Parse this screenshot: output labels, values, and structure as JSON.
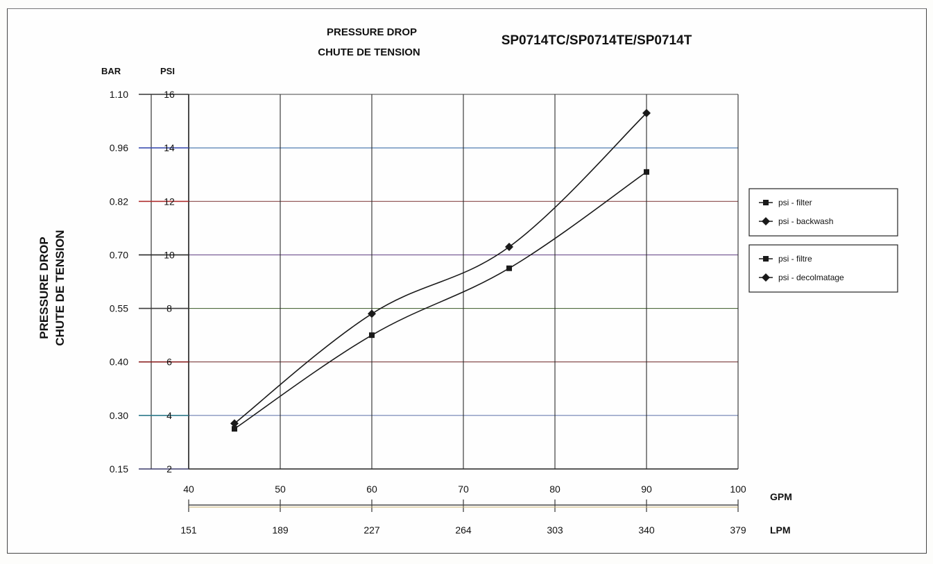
{
  "chart_data": {
    "type": "line",
    "title_lines": [
      "PRESSURE DROP",
      "CHUTE DE TENSION"
    ],
    "model": "SP0714TC/SP0714TE/SP0714T",
    "ylabel_lines": [
      "PRESSURE DROP",
      "CHUTE DE TENSION"
    ],
    "psi_axis_label": "PSI",
    "bar_axis_label": "BAR",
    "gpm_axis_label": "GPM",
    "lpm_axis_label": "LPM",
    "xlim": [
      40,
      100
    ],
    "ylim_psi": [
      2,
      16
    ],
    "x_ticks": [
      "40",
      "50",
      "60",
      "70",
      "80",
      "90",
      "100"
    ],
    "lpm_ticks": [
      "151",
      "189",
      "227",
      "264",
      "303",
      "340",
      "379"
    ],
    "psi_ticks": [
      "2",
      "4",
      "6",
      "8",
      "10",
      "12",
      "14",
      "16"
    ],
    "bar_ticks": [
      "0.15",
      "0.30",
      "0.40",
      "0.55",
      "0.70",
      "0.82",
      "0.96",
      "1.10"
    ],
    "grid": true,
    "series": [
      {
        "marker": "square",
        "x": [
          45,
          60,
          75,
          90
        ],
        "values": [
          3.5,
          7.0,
          9.5,
          13.1
        ]
      },
      {
        "marker": "diamond",
        "x": [
          45,
          60,
          75,
          90
        ],
        "values": [
          3.7,
          7.8,
          10.3,
          15.3
        ]
      }
    ],
    "legend_groups": [
      [
        "psi - filter",
        "psi - backwash"
      ],
      [
        "psi - filtre",
        "psi - decolmatage"
      ]
    ],
    "legend_position": "right"
  }
}
